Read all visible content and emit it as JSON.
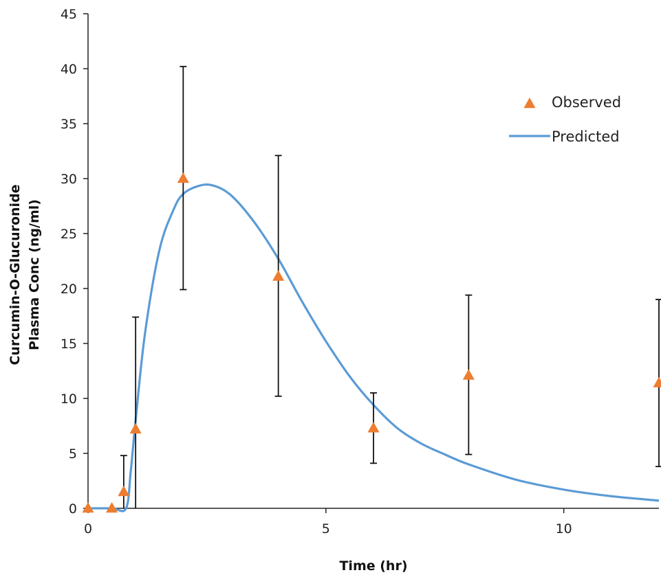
{
  "chart_data": {
    "type": "scatter",
    "title": "",
    "xlabel": "Time (hr)",
    "ylabel_line1": "Curcumin-O-Glucuronide",
    "ylabel_line2": "Plasma  Conc  (ng/ml)",
    "xlim": [
      0,
      12
    ],
    "ylim": [
      0,
      45
    ],
    "xticks": [
      0,
      5,
      10
    ],
    "yticks": [
      0,
      5,
      10,
      15,
      20,
      25,
      30,
      35,
      40,
      45
    ],
    "grid": false,
    "legend_position": "top-right",
    "series": [
      {
        "name": "Observed",
        "kind": "scatter",
        "marker": "triangle",
        "color": "#ED7D31",
        "x": [
          0,
          0.5,
          0.75,
          1,
          2,
          4,
          6,
          8,
          12
        ],
        "y": [
          0,
          0,
          1.5,
          7.2,
          30.0,
          21.1,
          7.3,
          12.1,
          11.4
        ],
        "error_low": [
          0,
          0,
          0,
          0,
          19.9,
          10.2,
          4.1,
          4.9,
          3.8
        ],
        "error_high": [
          0,
          0,
          4.8,
          17.4,
          40.2,
          32.1,
          10.5,
          19.4,
          19.0
        ]
      },
      {
        "name": "Predicted",
        "kind": "line",
        "color": "#5B9BD5",
        "x": [
          0,
          0.5,
          0.8,
          0.9,
          1,
          1.2,
          1.5,
          1.8,
          2,
          2.3,
          2.6,
          3,
          3.5,
          4,
          4.5,
          5,
          5.5,
          6,
          6.5,
          7,
          7.5,
          8,
          9,
          10,
          11,
          12
        ],
        "y": [
          0,
          0,
          0,
          3.5,
          8.0,
          16.0,
          23.5,
          27.2,
          28.6,
          29.3,
          29.4,
          28.5,
          26.0,
          22.7,
          18.8,
          15.2,
          12.0,
          9.4,
          7.3,
          5.9,
          4.9,
          4.0,
          2.6,
          1.7,
          1.1,
          0.7
        ]
      }
    ]
  }
}
